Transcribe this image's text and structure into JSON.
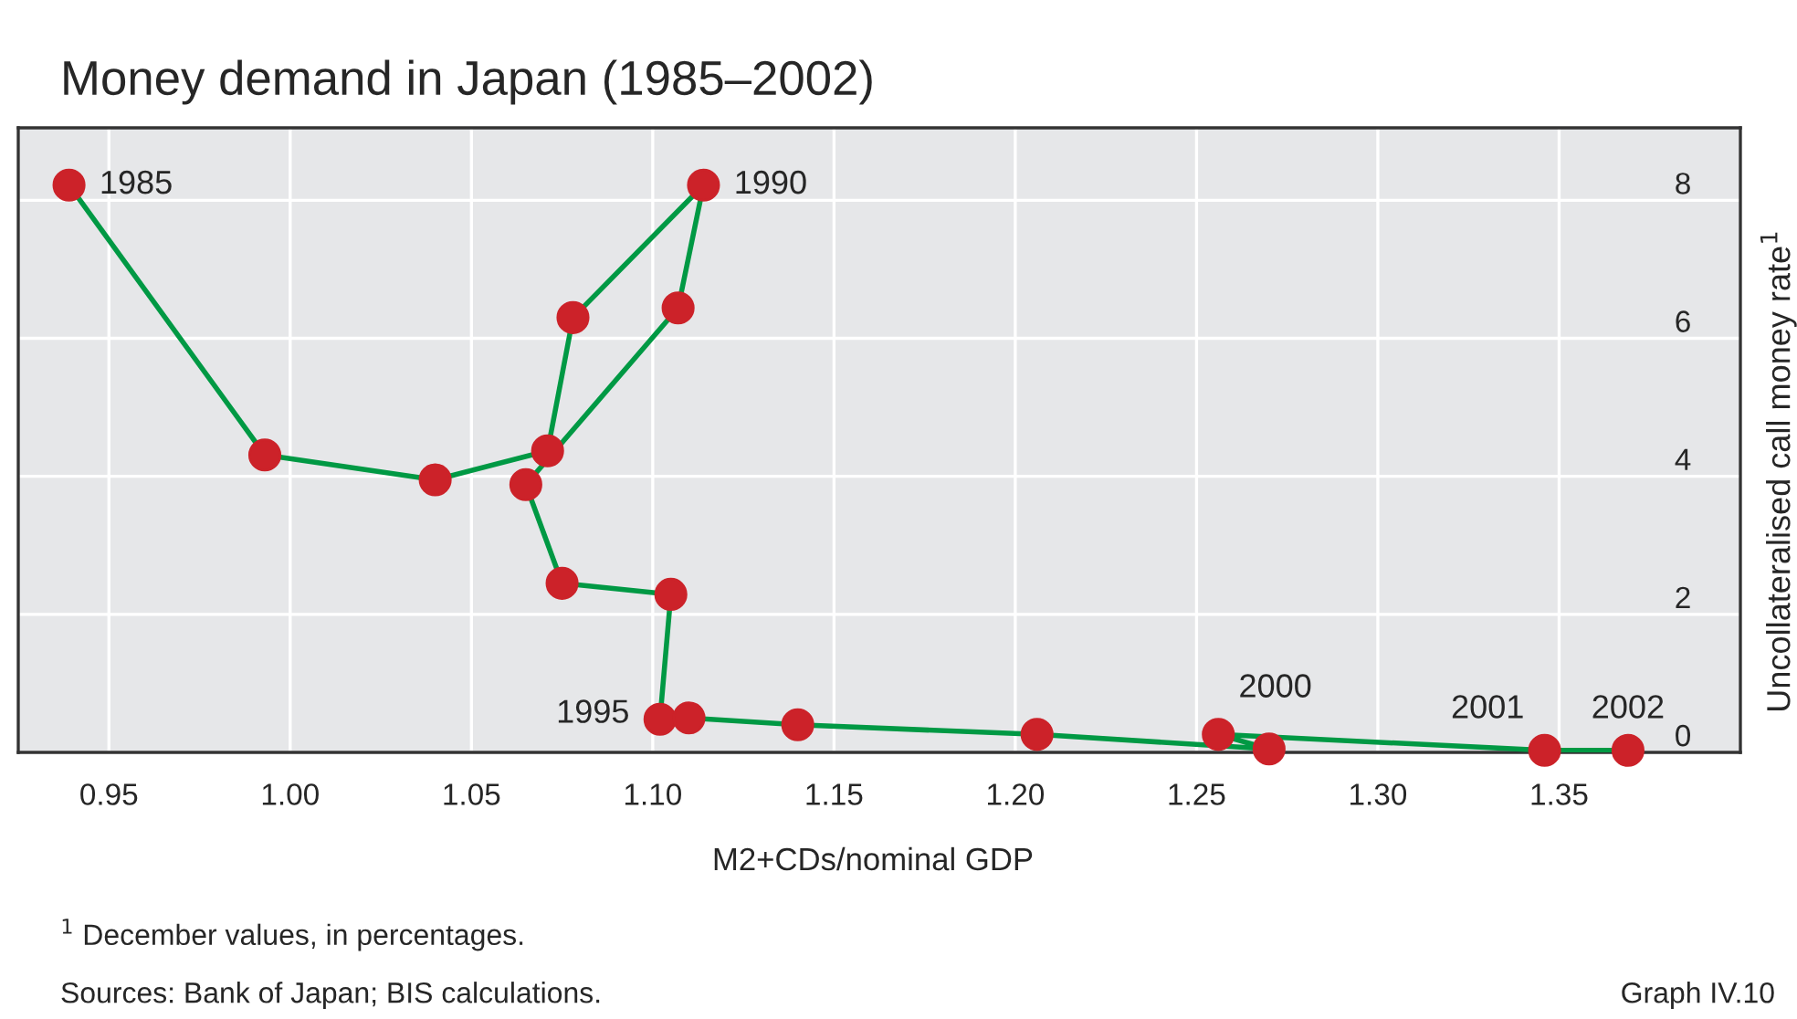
{
  "chart_data": {
    "type": "line",
    "title": "Money demand in Japan (1985–2002)",
    "xlabel": "M2+CDs/nominal GDP",
    "ylabel": "Uncollateralised call money rate$^{1}$",
    "xlim": [
      0.925,
      1.4
    ],
    "xticks": [
      0.95,
      {
        "value": 1.0,
        "label": "1.00"
      },
      1.05,
      {
        "value": 1.1,
        "label": "1.10"
      },
      1.15,
      {
        "value": 1.2,
        "label": "1.20"
      },
      1.25,
      {
        "value": 1.3,
        "label": "1.30"
      },
      1.35
    ],
    "ylim": [
      0,
      9.05
    ],
    "yticks": [
      0,
      2,
      4,
      6,
      8
    ],
    "grid": true,
    "marker": "circle",
    "line_style": "solid",
    "series": [
      {
        "color": "#009944",
        "colors": [
          "#cc2229",
          "#cc2229",
          "#cc2229",
          "#cc2229",
          "#cc2229",
          "#cc2229",
          "#cc2229",
          "#cc2229",
          "#cc2229",
          "#cc2229",
          "#cc2229",
          "#cc2229",
          "#cc2229",
          "#cc2229",
          "#cc2229",
          "#cc2229",
          "#cc2229",
          "#cc2229"
        ],
        "x": [
          0.939,
          0.993,
          1.04,
          1.071,
          1.078,
          1.114,
          1.107,
          1.065,
          1.075,
          1.105,
          1.102,
          1.11,
          1.14,
          1.206,
          1.27,
          1.256,
          1.346,
          1.369
        ],
        "values": [
          8.22,
          4.31,
          3.95,
          4.37,
          6.3,
          8.22,
          6.44,
          3.88,
          2.45,
          2.29,
          0.48,
          0.5,
          0.4,
          0.26,
          0.05,
          0.26,
          0.03,
          0.03
        ]
      }
    ],
    "annotations": [
      {
        "text": "1985",
        "x": 0.939,
        "y": 8.22
      },
      {
        "text": "1990",
        "x": 1.114,
        "y": 8.22
      },
      {
        "text": "1995",
        "x": 1.102,
        "y": 0.48
      },
      {
        "text": "2000",
        "x": 1.256,
        "y": 0.26
      },
      {
        "text": "2001",
        "x": 1.346,
        "y": 0.03
      },
      {
        "text": "2002",
        "x": 1.369,
        "y": 0.03
      },
      "$^{1}$ December values, in percentages.",
      "Sources: Bank of Japan; BIS calculations.",
      "Graph IV.10"
    ]
  }
}
